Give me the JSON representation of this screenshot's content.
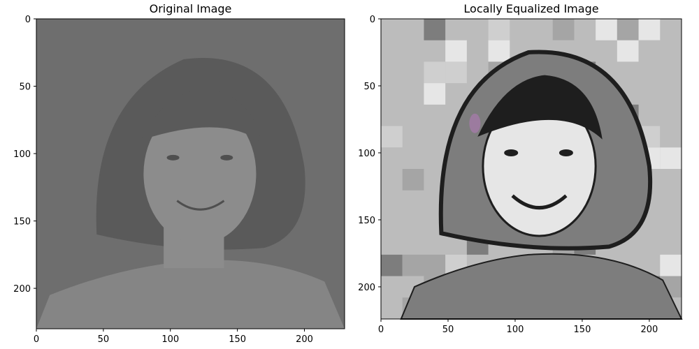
{
  "chart_data": [
    {
      "type": "image",
      "title": "Original Image",
      "xlim": [
        0,
        230
      ],
      "ylim": [
        230,
        0
      ],
      "xticks": [
        0,
        50,
        100,
        150,
        200
      ],
      "yticks": [
        0,
        50,
        100,
        150,
        200
      ],
      "colors": {
        "background": "#6e6e6e",
        "hair": "#5a5a5a",
        "skin": "#8c8c8c",
        "shirt": "#858585",
        "feature": "#4f4f4f"
      }
    },
    {
      "type": "image",
      "title": "Locally Equalized Image",
      "xlim": [
        0,
        224
      ],
      "ylim": [
        224,
        0
      ],
      "xticks": [
        0,
        50,
        100,
        150,
        200
      ],
      "yticks": [
        0,
        50,
        100,
        150,
        200
      ],
      "colors": {
        "background": "#bcbcbc",
        "dark": "#1e1e1e",
        "mid": "#7d7d7d",
        "light": "#e6e6e6",
        "accent": "#b07ab5"
      }
    }
  ]
}
